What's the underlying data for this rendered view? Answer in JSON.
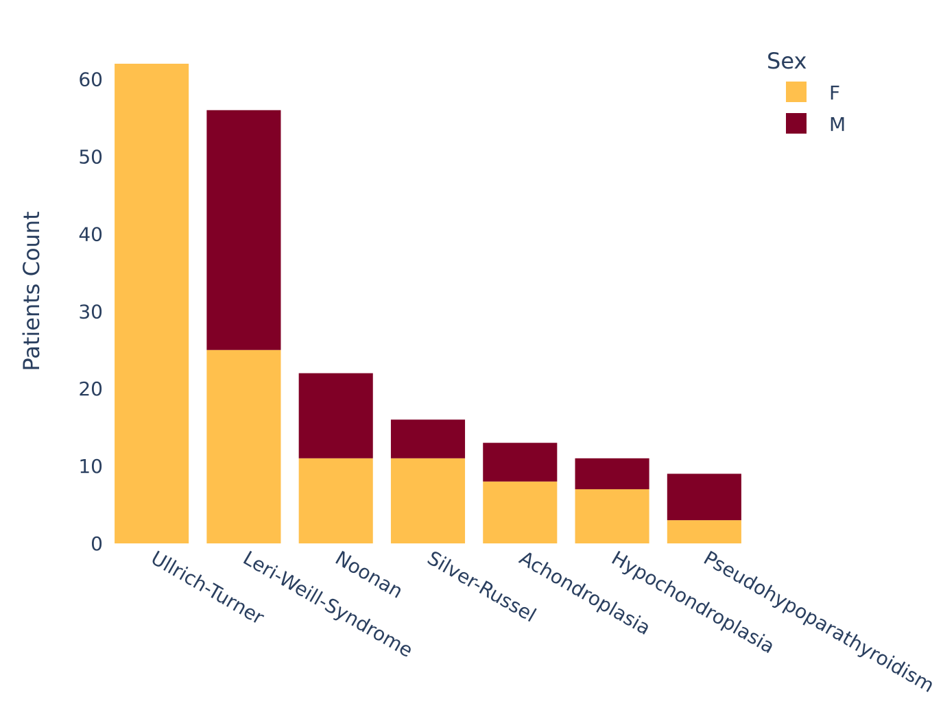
{
  "chart_data": {
    "type": "bar",
    "stacked": true,
    "categories": [
      "Ullrich-Turner",
      "Leri-Weill-Syndrome",
      "Noonan",
      "Silver-Russel",
      "Achondroplasia",
      "Hypochondroplasia",
      "Pseudohypoparathyroidism"
    ],
    "series": [
      {
        "name": "F",
        "color": "#FFC04D",
        "values": [
          62,
          25,
          11,
          11,
          8,
          7,
          3
        ]
      },
      {
        "name": "M",
        "color": "#800026",
        "values": [
          0,
          31,
          11,
          5,
          5,
          4,
          6
        ]
      }
    ],
    "xlabel": "",
    "ylabel": "Patients Count",
    "ylim": [
      0,
      62
    ],
    "yticks": [
      0,
      10,
      20,
      30,
      40,
      50,
      60
    ],
    "grid": false,
    "legend": {
      "title": "Sex",
      "placement": "top-right"
    }
  }
}
